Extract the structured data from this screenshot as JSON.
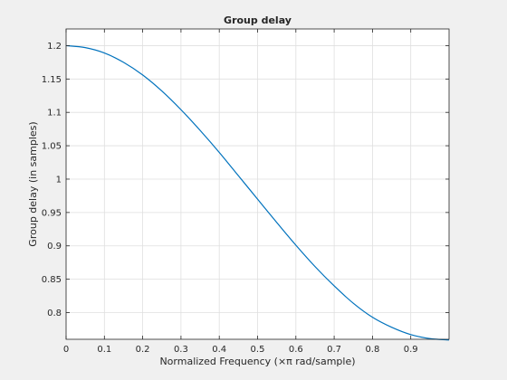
{
  "chart_data": {
    "type": "line",
    "title": "Group delay",
    "xlabel": "Normalized Frequency  (×π rad/sample)",
    "ylabel": "Group delay (in samples)",
    "xlim": [
      0,
      1
    ],
    "ylim": [
      0.76,
      1.225
    ],
    "xticks": [
      0,
      0.1,
      0.2,
      0.3,
      0.4,
      0.5,
      0.6,
      0.7,
      0.8,
      0.9
    ],
    "xtick_labels": [
      "0",
      "0.1",
      "0.2",
      "0.3",
      "0.4",
      "0.5",
      "0.6",
      "0.7",
      "0.8",
      "0.9"
    ],
    "yticks": [
      0.8,
      0.85,
      0.9,
      0.95,
      1,
      1.05,
      1.1,
      1.15,
      1.2
    ],
    "ytick_labels": [
      "0.8",
      "0.85",
      "0.9",
      "0.95",
      "1",
      "1.05",
      "1.1",
      "1.15",
      "1.2"
    ],
    "grid": true,
    "series": [
      {
        "color": "#0072bd",
        "x": [
          0,
          0.05,
          0.1,
          0.15,
          0.2,
          0.25,
          0.3,
          0.35,
          0.4,
          0.45,
          0.5,
          0.55,
          0.6,
          0.65,
          0.7,
          0.75,
          0.8,
          0.85,
          0.9,
          0.95,
          1.0
        ],
        "y": [
          1.2,
          1.197,
          1.189,
          1.175,
          1.156,
          1.132,
          1.104,
          1.073,
          1.04,
          1.005,
          0.97,
          0.935,
          0.901,
          0.869,
          0.84,
          0.814,
          0.793,
          0.778,
          0.767,
          0.761,
          0.759
        ]
      }
    ]
  }
}
